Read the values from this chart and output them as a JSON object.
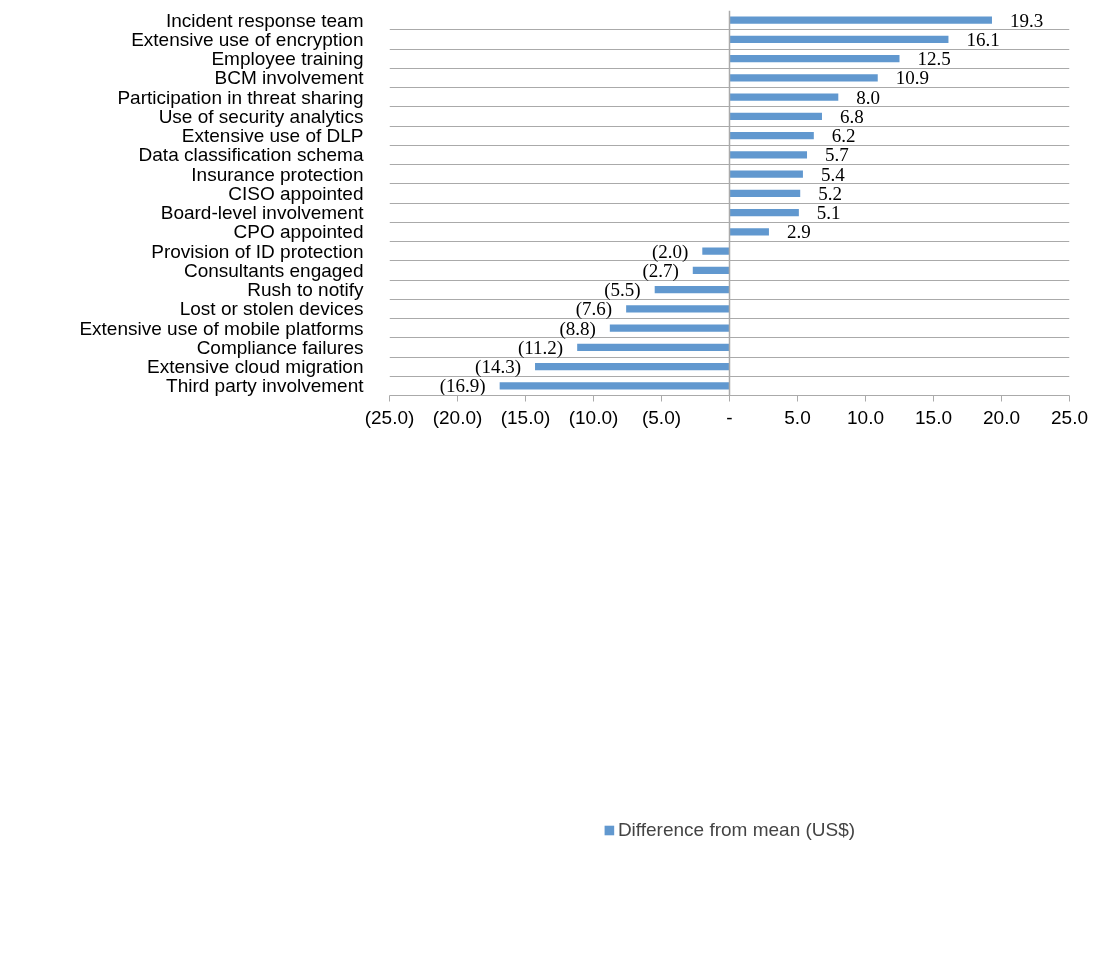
{
  "chart_data": {
    "type": "bar",
    "orientation": "horizontal",
    "categories": [
      "Incident response team",
      "Extensive use of encryption",
      "Employee training",
      "BCM involvement",
      "Participation in threat sharing",
      "Use of security analytics",
      "Extensive use of DLP",
      "Data classification schema",
      "Insurance protection",
      "CISO appointed",
      "Board-level involvement",
      "CPO appointed",
      "Provision of ID protection",
      "Consultants engaged",
      "Rush to notify",
      "Lost or stolen devices",
      "Extensive use of mobile platforms",
      "Compliance failures",
      "Extensive cloud migration",
      "Third party involvement"
    ],
    "series": [
      {
        "name": "Difference from mean (US$)",
        "color": "#6198cf",
        "values": [
          19.3,
          16.1,
          12.5,
          10.9,
          8.0,
          6.8,
          6.2,
          5.7,
          5.4,
          5.2,
          5.1,
          2.9,
          -2.0,
          -2.7,
          -5.5,
          -7.6,
          -8.8,
          -11.2,
          -14.3,
          -16.9
        ],
        "value_labels": [
          "19.3",
          "16.1",
          "12.5",
          "10.9",
          "8.0",
          "6.8",
          "6.2",
          "5.7",
          "5.4",
          "5.2",
          "5.1",
          "2.9",
          "(2.0)",
          "(2.7)",
          "(5.5)",
          "(7.6)",
          "(8.8)",
          "(11.2)",
          "(14.3)",
          "(16.9)"
        ]
      }
    ],
    "xlim": [
      -25,
      25
    ],
    "xticks": [
      {
        "value": -25,
        "label": "(25.0)"
      },
      {
        "value": -20,
        "label": "(20.0)"
      },
      {
        "value": -15,
        "label": "(15.0)"
      },
      {
        "value": -10,
        "label": "(10.0)"
      },
      {
        "value": -5,
        "label": "(5.0)"
      },
      {
        "value": 0,
        "label": "-"
      },
      {
        "value": 5,
        "label": "5.0"
      },
      {
        "value": 10,
        "label": "10.0"
      },
      {
        "value": 15,
        "label": "15.0"
      },
      {
        "value": 20,
        "label": "20.0"
      },
      {
        "value": 25,
        "label": "25.0"
      }
    ],
    "grid": "y",
    "legend": "bottom"
  }
}
